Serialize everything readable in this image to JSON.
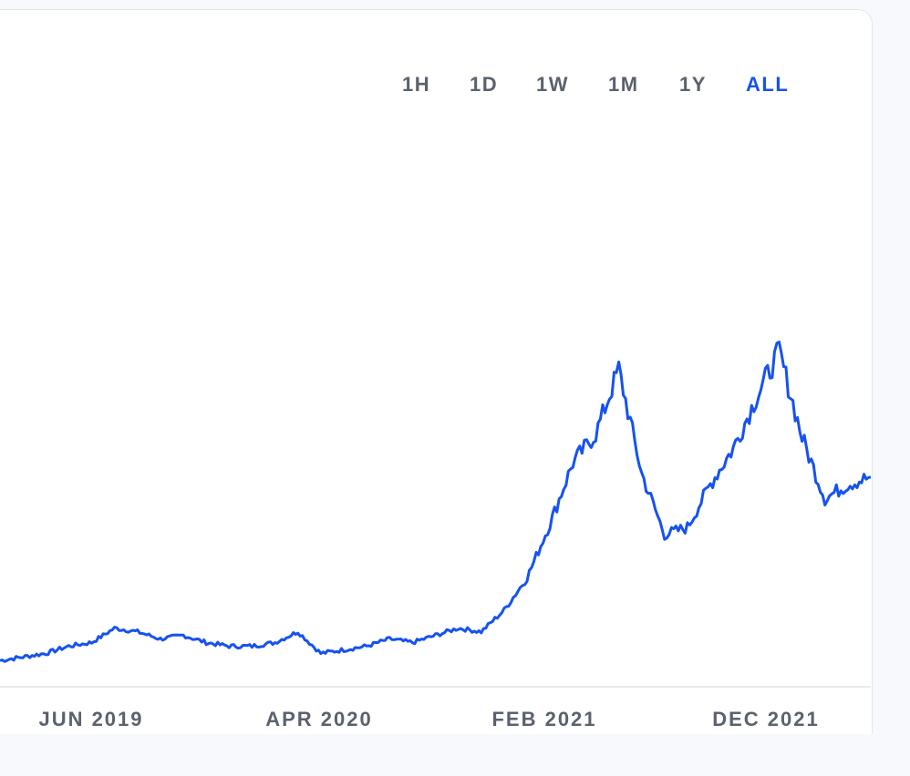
{
  "time_ranges": {
    "options": [
      "1H",
      "1D",
      "1W",
      "1M",
      "1Y",
      "ALL"
    ],
    "selected": "ALL"
  },
  "colors": {
    "line": "#1652f0",
    "active_range": "#1652f0",
    "inactive_range": "#5b616e",
    "axis_line": "#dfe2e8"
  },
  "chart_data": {
    "type": "line",
    "title": "",
    "xlabel": "",
    "ylabel": "",
    "x_tick_labels": [
      "JUN 2019",
      "APR 2020",
      "FEB 2021",
      "DEC 2021"
    ],
    "ylim": [
      0,
      100
    ],
    "grid": false,
    "series": [
      {
        "name": "",
        "x": [
          "2019-01",
          "2019-02",
          "2019-03",
          "2019-04",
          "2019-05",
          "2019-06",
          "2019-07",
          "2019-08",
          "2019-09",
          "2019-10",
          "2019-11",
          "2019-12",
          "2020-01",
          "2020-02",
          "2020-03",
          "2020-04",
          "2020-05",
          "2020-06",
          "2020-07",
          "2020-08",
          "2020-09",
          "2020-10",
          "2020-11",
          "2020-12",
          "2021-01",
          "2021-02",
          "2021-03",
          "2021-04",
          "2021-05",
          "2021-06",
          "2021-07",
          "2021-08",
          "2021-09",
          "2021-10",
          "2021-11",
          "2021-12",
          "2022-01",
          "2022-02",
          "2022-03"
        ],
        "y": [
          5,
          6,
          7,
          9,
          10,
          14,
          13,
          11,
          12,
          10,
          9,
          9,
          10,
          13,
          7,
          8,
          9,
          11,
          10,
          12,
          14,
          13,
          19,
          28,
          43,
          60,
          68,
          86,
          57,
          40,
          42,
          54,
          64,
          78,
          91,
          67,
          50,
          54,
          56
        ]
      }
    ]
  }
}
